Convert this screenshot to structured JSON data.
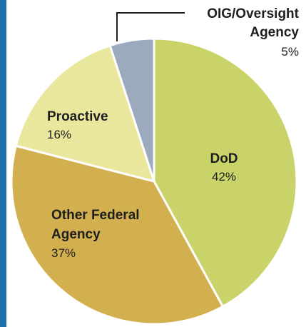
{
  "chart_data": {
    "type": "pie",
    "slices": [
      {
        "label": "DoD",
        "value": 42,
        "pct_text": "42%",
        "color": "#c9d36a"
      },
      {
        "label": "Other Federal Agency",
        "label_lines": [
          "Other Federal",
          "Agency"
        ],
        "value": 37,
        "pct_text": "37%",
        "color": "#d3b04f"
      },
      {
        "label": "Proactive",
        "value": 16,
        "pct_text": "16%",
        "color": "#e9e79d"
      },
      {
        "label": "OIG/Oversight Agency",
        "label_lines": [
          "OIG/Oversight",
          "Agency"
        ],
        "value": 5,
        "pct_text": "5%",
        "color": "#9caabd"
      }
    ],
    "start_angle_deg": 0,
    "direction": "clockwise"
  },
  "colors": {
    "left_bar": "#1e72ab",
    "slice_border": "#ffffff",
    "label_text": "#1e1e1e",
    "leader_line": "#1e1e1e"
  }
}
